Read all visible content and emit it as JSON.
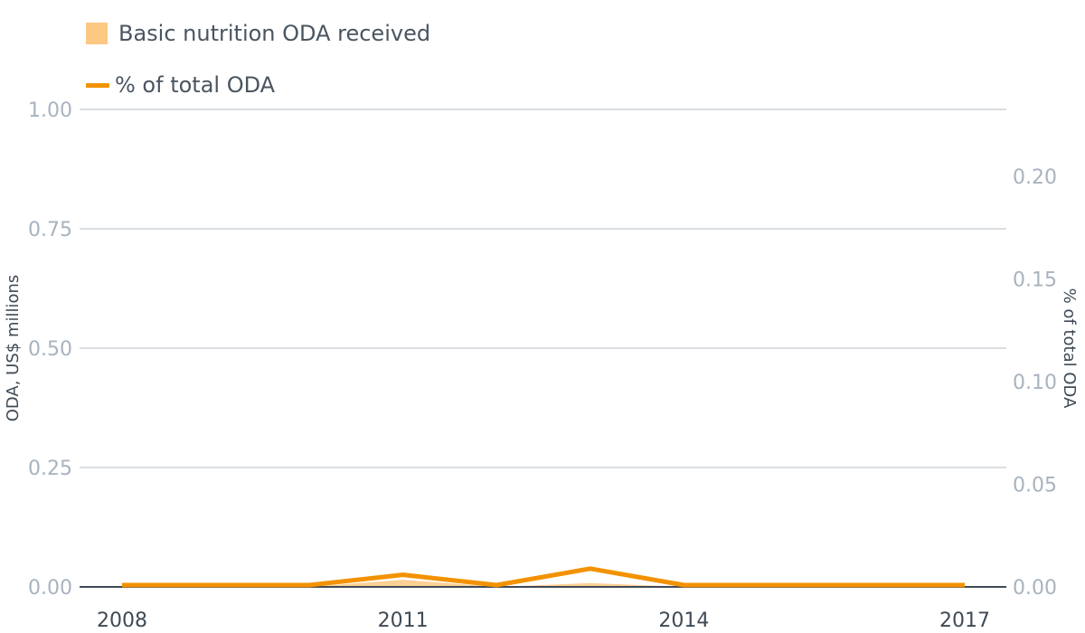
{
  "chart_data": {
    "type": "area",
    "legend": {
      "area_label": "Basic nutrition ODA received",
      "line_label": "% of total ODA"
    },
    "x": [
      "2008",
      "2009",
      "2010",
      "2011",
      "2012",
      "2013",
      "2014",
      "2015",
      "2016",
      "2017"
    ],
    "x_tick_labels": [
      "2008",
      "2011",
      "2014",
      "2017"
    ],
    "series": [
      {
        "name": "Basic nutrition ODA received",
        "kind": "area",
        "axis": "left",
        "color": "#fdc882",
        "values": [
          0,
          0,
          0,
          0.015,
          0,
          0.008,
          0,
          0,
          0,
          0
        ]
      },
      {
        "name": "% of total ODA",
        "kind": "line",
        "axis": "right",
        "color": "#f39200",
        "values": [
          0,
          0,
          0,
          0.005,
          0,
          0.008,
          0,
          0,
          0,
          0
        ]
      }
    ],
    "ylabel": "ODA, US$ millions",
    "y2label": "% of total ODA",
    "ylim": [
      0,
      1.0
    ],
    "y2lim": [
      0,
      0.2325
    ],
    "yticks": [
      "0.00",
      "0.25",
      "0.50",
      "0.75",
      "1.00"
    ],
    "y2ticks": [
      "0.00",
      "0.05",
      "0.10",
      "0.15",
      "0.20"
    ],
    "grid": true,
    "colors": {
      "grid": "#c3c9d1",
      "baseline": "#3f4a55",
      "tick": "#a9b3be",
      "axis_title": "#3f4a55"
    }
  }
}
